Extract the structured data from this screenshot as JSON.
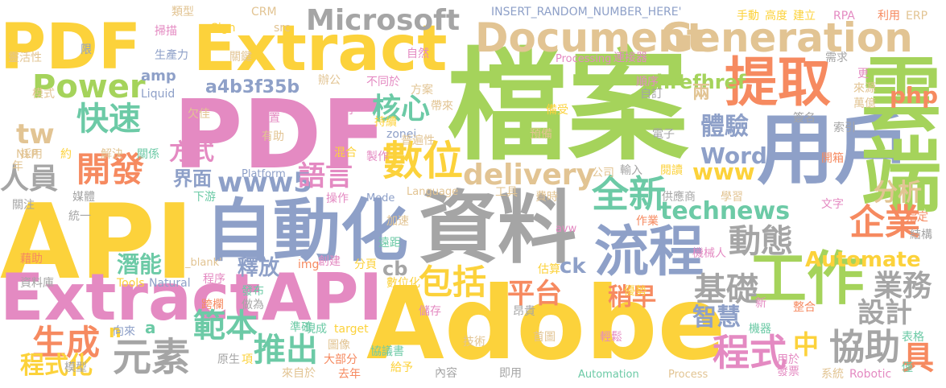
{
  "cloud": {
    "colors": {
      "yellow": "#fcd23b",
      "green": "#a5d35b",
      "blue": "#8ea0c8",
      "pink": "#e48ac2",
      "orange": "#f68a60",
      "gray": "#a5a5a5",
      "tan": "#e2c493",
      "teal": "#6ccaa6"
    },
    "words": [
      {
        "t": "檔案",
        "c": "green"
      },
      {
        "t": "Adobe",
        "c": "yellow"
      },
      {
        "t": "API",
        "c": "yellow"
      },
      {
        "t": "PDF",
        "c": "pink"
      },
      {
        "t": "資料",
        "c": "gray"
      },
      {
        "t": "PDF",
        "c": "yellow"
      },
      {
        "t": "Extract",
        "c": "yellow"
      },
      {
        "t": "Extract",
        "c": "pink"
      },
      {
        "t": "API",
        "c": "pink"
      },
      {
        "t": "用戶",
        "c": "blue"
      },
      {
        "t": "自動化",
        "c": "blue"
      },
      {
        "t": "Document",
        "c": "tan"
      },
      {
        "t": "Generation",
        "c": "tan"
      },
      {
        "t": "提取",
        "c": "orange"
      },
      {
        "t": "流程",
        "c": "blue"
      },
      {
        "t": "工作",
        "c": "green"
      },
      {
        "t": "Microsoft",
        "c": "gray"
      },
      {
        "t": "Power",
        "c": "green"
      },
      {
        "t": "雲端",
        "c": "green"
      },
      {
        "t": "快速",
        "c": "teal"
      },
      {
        "t": "開發",
        "c": "orange"
      },
      {
        "t": "數位",
        "c": "yellow"
      },
      {
        "t": "核心",
        "c": "teal"
      },
      {
        "t": "企業",
        "c": "orange"
      },
      {
        "t": "元素",
        "c": "gray"
      },
      {
        "t": "範本",
        "c": "teal"
      },
      {
        "t": "推出",
        "c": "teal"
      },
      {
        "t": "包括",
        "c": "yellow"
      },
      {
        "t": "全新",
        "c": "teal"
      },
      {
        "t": "平台",
        "c": "orange"
      },
      {
        "t": "生成",
        "c": "orange"
      },
      {
        "t": "程式",
        "c": "pink"
      },
      {
        "t": "協助",
        "c": "gray"
      },
      {
        "t": "動態",
        "c": "gray"
      },
      {
        "t": "基礎",
        "c": "gray"
      },
      {
        "t": "delivery",
        "c": "tan"
      },
      {
        "t": "technews",
        "c": "teal"
      },
      {
        "t": "Automate",
        "c": "yellow"
      },
      {
        "t": "Word",
        "c": "blue"
      },
      {
        "t": "www5",
        "c": "blue"
      },
      {
        "t": "a4b3f35b",
        "c": "blue"
      },
      {
        "t": "hrefhref",
        "c": "green"
      },
      {
        "t": "體驗",
        "c": "blue"
      },
      {
        "t": "業務",
        "c": "gray"
      },
      {
        "t": "設計",
        "c": "gray"
      },
      {
        "t": "分析",
        "c": "tan"
      },
      {
        "t": "人員",
        "c": "gray"
      },
      {
        "t": "tw",
        "c": "tan"
      },
      {
        "t": "php",
        "c": "orange"
      },
      {
        "t": "www",
        "c": "yellow"
      },
      {
        "t": "語言",
        "c": "pink"
      },
      {
        "t": "界面",
        "c": "blue"
      },
      {
        "t": "方式",
        "c": "pink"
      },
      {
        "t": "釋放",
        "c": "blue"
      },
      {
        "t": "潛能",
        "c": "teal"
      },
      {
        "t": "智慧",
        "c": "blue"
      },
      {
        "t": "程式化",
        "c": "yellow"
      },
      {
        "t": "稍早",
        "c": "orange"
      },
      {
        "t": "amp",
        "c": "blue"
      },
      {
        "t": "cb",
        "c": "gray"
      },
      {
        "t": "ck",
        "c": "blue"
      },
      {
        "t": "中",
        "c": "yellow"
      },
      {
        "t": "具",
        "c": "orange"
      },
      {
        "t": "兩",
        "c": "tan"
      },
      {
        "t": "a",
        "c": "teal"
      },
      {
        "t": "n",
        "c": "yellow"
      },
      {
        "t": "INSERT_RANDOM_NUMBER_HERE'",
        "c": "blue"
      },
      {
        "t": "CRM",
        "c": "tan"
      },
      {
        "t": "src",
        "c": "tan"
      },
      {
        "t": "Sign",
        "c": "yellow"
      },
      {
        "t": "類型",
        "c": "tan"
      },
      {
        "t": "掃描",
        "c": "pink"
      },
      {
        "t": "生產力",
        "c": "blue"
      },
      {
        "t": "關鍵",
        "c": "tan"
      },
      {
        "t": "辦公",
        "c": "tan"
      },
      {
        "t": "不同於",
        "c": "pink"
      },
      {
        "t": "自然",
        "c": "pink"
      },
      {
        "t": "持續",
        "c": "yellow"
      },
      {
        "t": "方案",
        "c": "tan"
      },
      {
        "t": "帶來",
        "c": "tan"
      },
      {
        "t": "Processing",
        "c": "pink"
      },
      {
        "t": "連接器",
        "c": "pink"
      },
      {
        "t": "手動",
        "c": "yellow"
      },
      {
        "t": "高度",
        "c": "yellow"
      },
      {
        "t": "建立",
        "c": "yellow"
      },
      {
        "t": "RPA",
        "c": "pink"
      },
      {
        "t": "利用",
        "c": "orange"
      },
      {
        "t": "ERP",
        "c": "tan"
      },
      {
        "t": "需求",
        "c": "gray"
      },
      {
        "t": "更",
        "c": "pink"
      },
      {
        "t": "來源",
        "c": "tan"
      },
      {
        "t": "萬億",
        "c": "tan"
      },
      {
        "t": "自訂",
        "c": "gray"
      },
      {
        "t": "順序",
        "c": "pink"
      },
      {
        "t": "簽名",
        "c": "gray"
      },
      {
        "t": "索引",
        "c": "gray"
      },
      {
        "t": "靈活性",
        "c": "tan"
      },
      {
        "t": "限",
        "c": "blue"
      },
      {
        "t": "Liquid",
        "c": "blue"
      },
      {
        "t": "模式",
        "c": "tan"
      },
      {
        "t": "採用",
        "c": "tan"
      },
      {
        "t": "NLP",
        "c": "tan"
      },
      {
        "t": "約",
        "c": "yellow"
      },
      {
        "t": "年",
        "c": "tan"
      },
      {
        "t": "解決",
        "c": "tan"
      },
      {
        "t": "關係",
        "c": "teal"
      },
      {
        "t": "欠佳",
        "c": "tan"
      },
      {
        "t": "位置",
        "c": "pink"
      },
      {
        "t": "有助",
        "c": "tan"
      },
      {
        "t": "zonei",
        "c": "blue"
      },
      {
        "t": "普遍性",
        "c": "tan"
      },
      {
        "t": "在內",
        "c": "pink"
      },
      {
        "t": "預備",
        "c": "tan"
      },
      {
        "t": "備受",
        "c": "yellow"
      },
      {
        "t": "電子",
        "c": "gray"
      },
      {
        "t": "Platform",
        "c": "blue"
      },
      {
        "t": "混合",
        "c": "yellow"
      },
      {
        "t": "製作",
        "c": "pink"
      },
      {
        "t": "Language",
        "c": "tan"
      },
      {
        "t": "工具",
        "c": "tan"
      },
      {
        "t": "公司",
        "c": "tan"
      },
      {
        "t": "輸入",
        "c": "gray"
      },
      {
        "t": "閱讀",
        "c": "yellow"
      },
      {
        "t": "開箱",
        "c": "orange"
      },
      {
        "t": "下游",
        "c": "teal"
      },
      {
        "t": "操作",
        "c": "pink"
      },
      {
        "t": "Mode",
        "c": "blue"
      },
      {
        "t": "費時",
        "c": "tan"
      },
      {
        "t": "供應商",
        "c": "gray"
      },
      {
        "t": "學習",
        "c": "tan"
      },
      {
        "t": "文字",
        "c": "pink"
      },
      {
        "t": "指定",
        "c": "orange"
      },
      {
        "t": "結構",
        "c": "gray"
      },
      {
        "t": "關注",
        "c": "gray"
      },
      {
        "t": "媒體",
        "c": "gray"
      },
      {
        "t": "統一",
        "c": "gray"
      },
      {
        "t": "加速",
        "c": "tan"
      },
      {
        "t": "avw",
        "c": "pink"
      },
      {
        "t": "作業",
        "c": "orange"
      },
      {
        "t": "遠距",
        "c": "teal"
      },
      {
        "t": "藉助",
        "c": "orange"
      },
      {
        "t": "_blank'",
        "c": "tan"
      },
      {
        "t": "img",
        "c": "orange"
      },
      {
        "t": "創建",
        "c": "pink"
      },
      {
        "t": "分頁",
        "c": "yellow"
      },
      {
        "t": "估算",
        "c": "yellow"
      },
      {
        "t": "機械人",
        "c": "pink"
      },
      {
        "t": "資料庫",
        "c": "gray"
      },
      {
        "t": "程序",
        "c": "pink"
      },
      {
        "t": "Tools",
        "c": "yellow"
      },
      {
        "t": "Natural",
        "c": "blue"
      },
      {
        "t": "發布",
        "c": "teal"
      },
      {
        "t": "數位化",
        "c": "yellow"
      },
      {
        "t": "優勢",
        "c": "yellow"
      },
      {
        "t": "整合",
        "c": "orange"
      },
      {
        "t": "新",
        "c": "pink"
      },
      {
        "t": "跨欄",
        "c": "orange"
      },
      {
        "t": "做為",
        "c": "gray"
      },
      {
        "t": "儲存",
        "c": "pink"
      },
      {
        "t": "昂貴",
        "c": "gray"
      },
      {
        "t": "向來",
        "c": "blue"
      },
      {
        "t": "準確",
        "c": "teal"
      },
      {
        "t": "現成",
        "c": "teal"
      },
      {
        "t": "target",
        "c": "yellow"
      },
      {
        "t": "首圖",
        "c": "tan"
      },
      {
        "t": "輕鬆",
        "c": "pink"
      },
      {
        "t": "機器",
        "c": "teal"
      },
      {
        "t": "表格",
        "c": "teal"
      },
      {
        "t": "技術",
        "c": "tan"
      },
      {
        "t": "圖像",
        "c": "tan"
      },
      {
        "t": "協議書",
        "c": "teal"
      },
      {
        "t": "用於",
        "c": "pink"
      },
      {
        "t": "發票",
        "c": "pink"
      },
      {
        "t": "系統",
        "c": "tan"
      },
      {
        "t": "Robotic",
        "c": "pink"
      },
      {
        "t": "僅",
        "c": "teal"
      },
      {
        "t": "模型",
        "c": "gray"
      },
      {
        "t": "原生",
        "c": "gray"
      },
      {
        "t": "項",
        "c": "yellow"
      },
      {
        "t": "來自於",
        "c": "tan"
      },
      {
        "t": "大部分",
        "c": "orange"
      },
      {
        "t": "去年",
        "c": "orange"
      },
      {
        "t": "給予",
        "c": "yellow"
      },
      {
        "t": "內容",
        "c": "gray"
      },
      {
        "t": "即用",
        "c": "gray"
      },
      {
        "t": "Automation",
        "c": "teal"
      },
      {
        "t": "Process",
        "c": "tan"
      }
    ]
  }
}
